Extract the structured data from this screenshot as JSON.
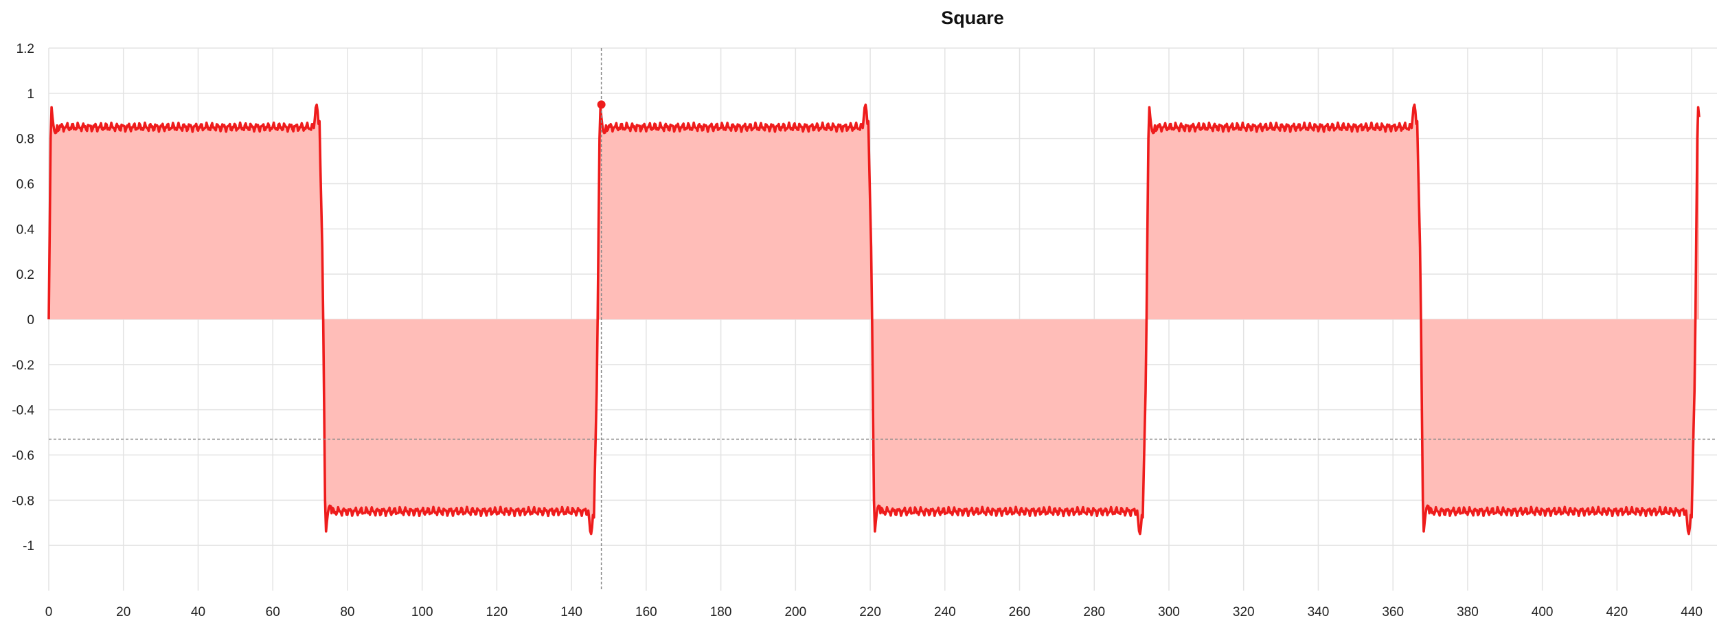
{
  "chart_data": {
    "type": "area",
    "title": "Square",
    "xlabel": "",
    "ylabel": "",
    "xlim": [
      0,
      442
    ],
    "ylim": [
      -1.2,
      1.2
    ],
    "x_ticks": [
      0,
      20,
      40,
      60,
      80,
      100,
      120,
      140,
      160,
      180,
      200,
      220,
      240,
      260,
      280,
      300,
      320,
      340,
      360,
      380,
      400,
      420,
      440
    ],
    "x_tick_labels": [
      "0",
      "20",
      "40",
      "60",
      "80",
      "100",
      "120",
      "140",
      "160",
      "180",
      "200",
      "220",
      "240",
      "260",
      "280",
      "300",
      "320",
      "340",
      "360",
      "380",
      "400",
      "420",
      "440"
    ],
    "y_ticks": [
      1.2,
      1,
      0.8,
      0.6,
      0.4,
      0.2,
      0,
      -0.2,
      -0.4,
      -0.6,
      -0.8,
      -1
    ],
    "y_tick_labels": [
      "1.2",
      "1",
      "0.8",
      "0.6",
      "0.4",
      "0.2",
      "0",
      "-0.2",
      "-0.4",
      "-0.6",
      "-0.8",
      "-1"
    ],
    "grid": true,
    "series": [
      {
        "period": 147,
        "amplitude": 0.85,
        "overshoot_peak": 0.96,
        "ripple": 0.012,
        "color": "#ee1c1c",
        "fill_color": "#ffbdb8"
      }
    ],
    "hover": {
      "x": 148,
      "y": 0.95,
      "crosshair_y": -0.53,
      "crosshair_color": "#888888"
    }
  }
}
